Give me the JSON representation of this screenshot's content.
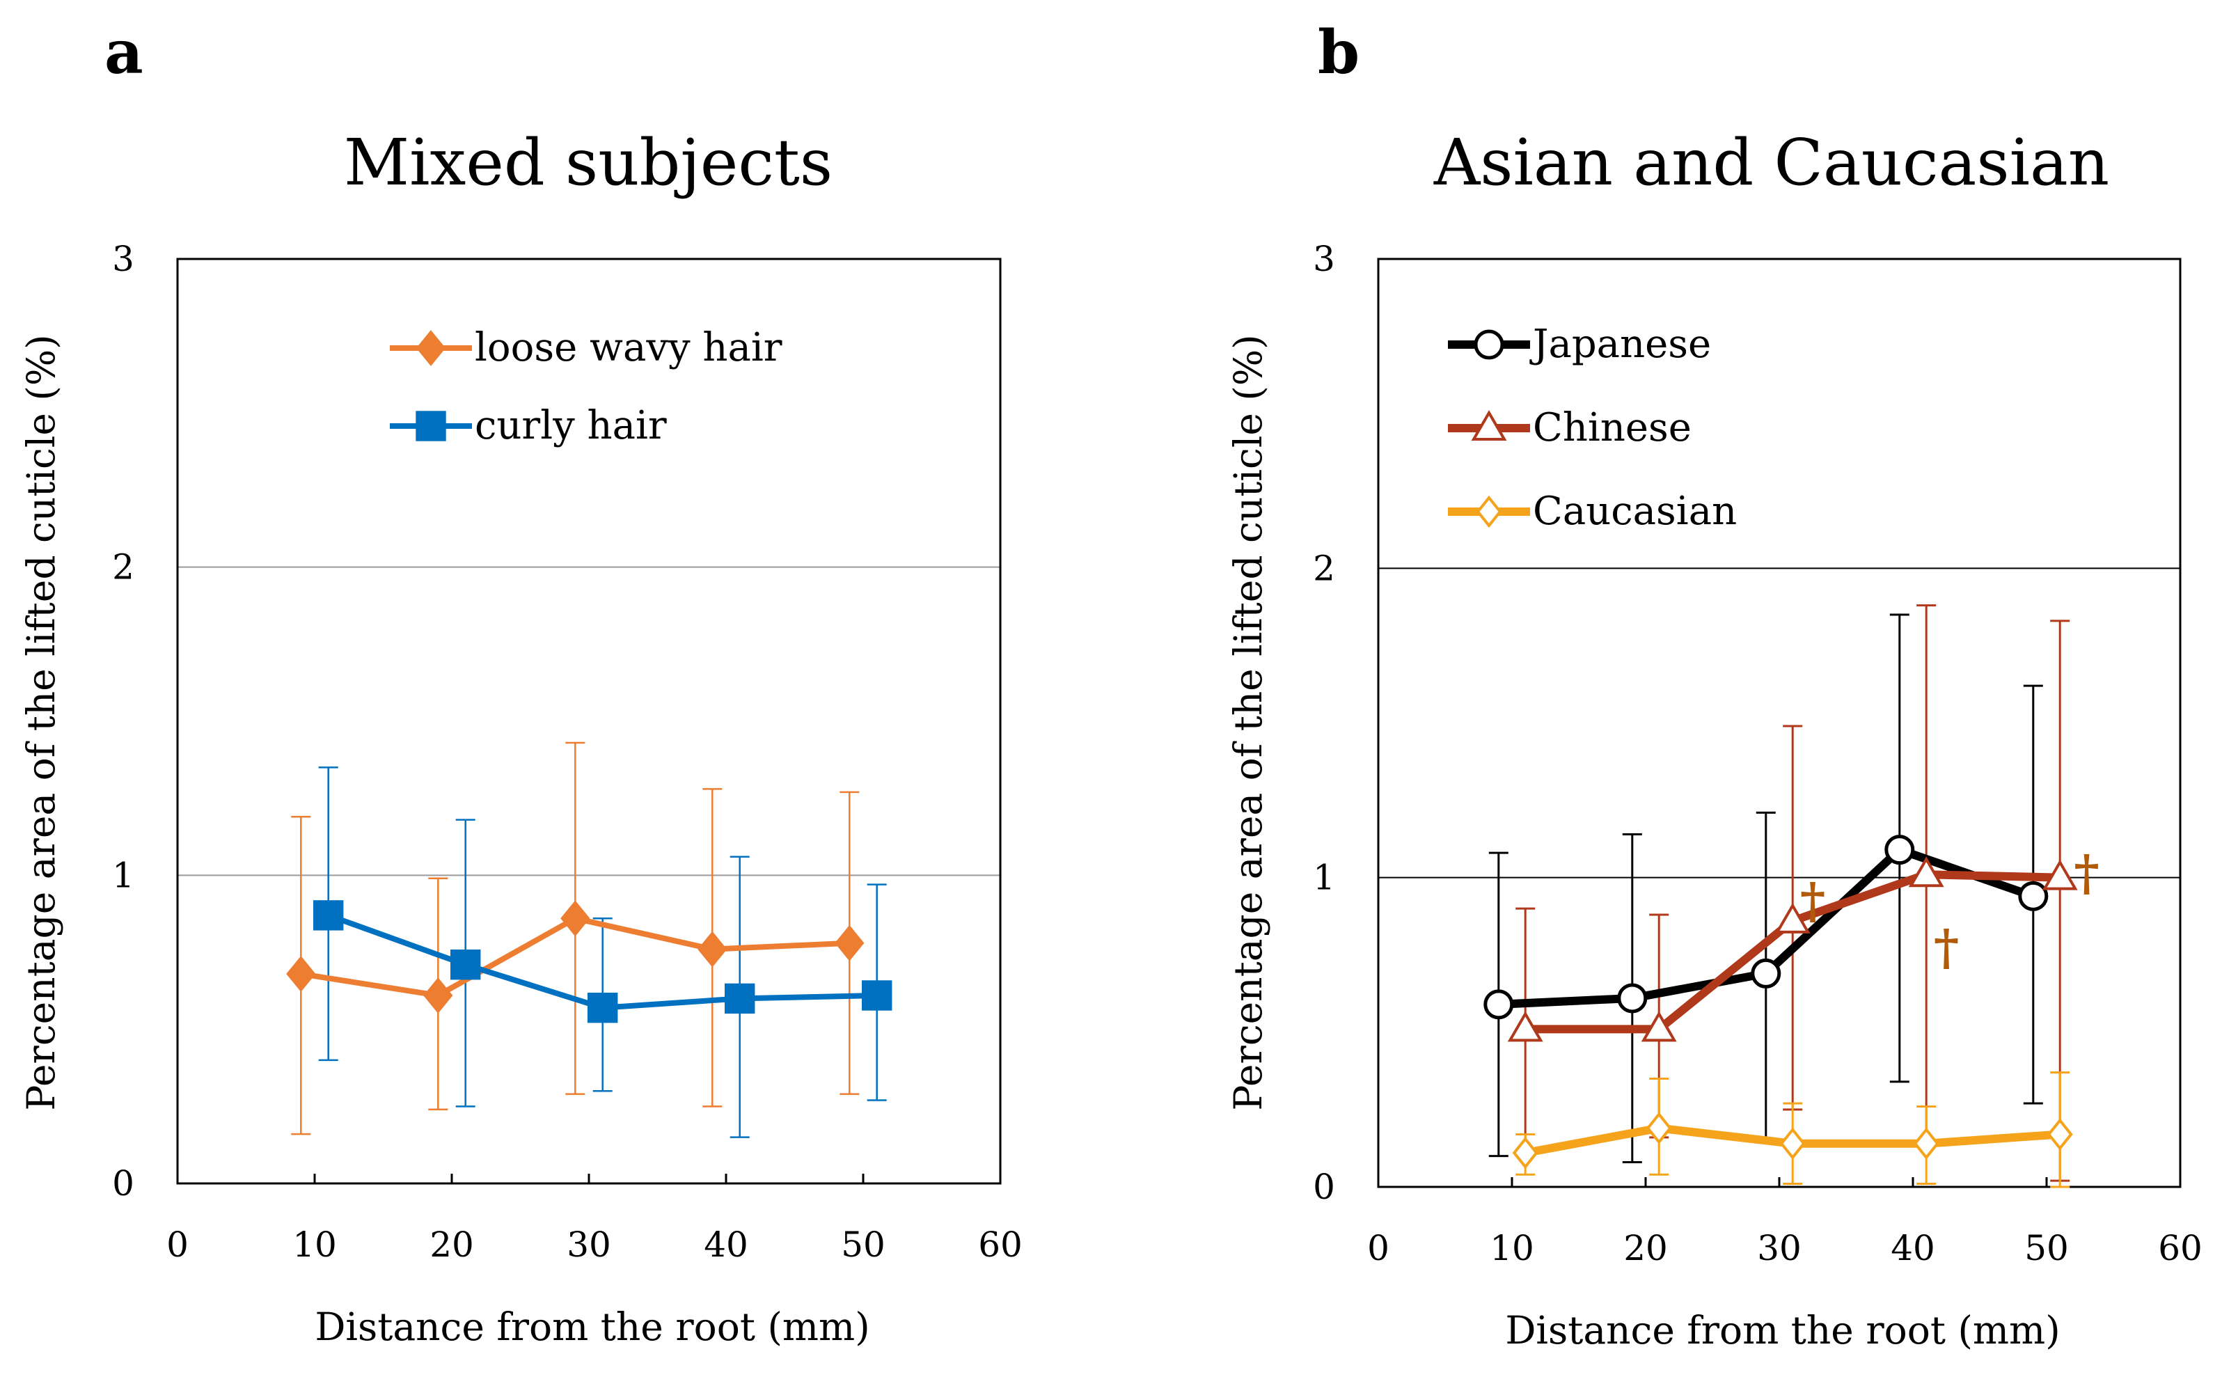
{
  "chart_data": [
    {
      "type": "line",
      "panel_label": "a",
      "title": "Mixed subjects",
      "xlabel": "Distance from the root (mm)",
      "ylabel": "Percentage area of the lifted cuticle (%)",
      "xlim": [
        0,
        60
      ],
      "ylim": [
        0,
        3
      ],
      "x_ticks": [
        "0",
        "10",
        "20",
        "30",
        "40",
        "50",
        "60"
      ],
      "y_ticks": [
        "0",
        "1",
        "2",
        "3"
      ],
      "gridlines_y": [
        1,
        2
      ],
      "legend_position": "top-left",
      "series": [
        {
          "name": "loose wavy hair",
          "color": "#ED7D31",
          "marker": "diamond",
          "x": [
            9,
            19,
            29,
            39,
            49
          ],
          "y": [
            0.68,
            0.61,
            0.86,
            0.76,
            0.78
          ],
          "err_low": [
            0.16,
            0.24,
            0.29,
            0.25,
            0.29
          ],
          "err_high": [
            1.19,
            0.99,
            1.43,
            1.28,
            1.27
          ]
        },
        {
          "name": "curly hair",
          "color": "#0070C0",
          "marker": "square",
          "x": [
            11,
            21,
            31,
            41,
            51
          ],
          "y": [
            0.87,
            0.71,
            0.57,
            0.6,
            0.61
          ],
          "err_low": [
            0.4,
            0.25,
            0.3,
            0.15,
            0.27
          ],
          "err_high": [
            1.35,
            1.18,
            0.86,
            1.06,
            0.97
          ]
        }
      ]
    },
    {
      "type": "line",
      "panel_label": "b",
      "title": "Asian and Caucasian",
      "xlabel": "Distance from the root (mm)",
      "ylabel": "Percentage area of  the lifted cuticle (%)",
      "xlim": [
        0,
        60
      ],
      "ylim": [
        0,
        3
      ],
      "x_ticks": [
        "0",
        "10",
        "20",
        "30",
        "40",
        "50",
        "60"
      ],
      "y_ticks": [
        "0",
        "1",
        "2",
        "3"
      ],
      "gridlines_y": [
        1,
        2
      ],
      "legend_position": "top-left",
      "annotations": [
        {
          "text": "†",
          "x": 32.5,
          "y": 0.92
        },
        {
          "text": "†",
          "x": 42.5,
          "y": 0.77
        },
        {
          "text": "†",
          "x": 53,
          "y": 1.01
        }
      ],
      "series": [
        {
          "name": "Japanese",
          "color": "#000000",
          "marker": "circle-open",
          "x": [
            9,
            19,
            29,
            39,
            49
          ],
          "y": [
            0.59,
            0.61,
            0.69,
            1.09,
            0.94
          ],
          "err_low": [
            0.1,
            0.08,
            0.15,
            0.34,
            0.27
          ],
          "err_high": [
            1.08,
            1.14,
            1.21,
            1.85,
            1.62
          ]
        },
        {
          "name": "Chinese",
          "color": "#B0381B",
          "marker": "triangle-open",
          "x": [
            11,
            21,
            31,
            41,
            51
          ],
          "y": [
            0.51,
            0.51,
            0.86,
            1.01,
            1.0
          ],
          "err_low": [
            0.12,
            0.16,
            0.25,
            0.14,
            0.02
          ],
          "err_high": [
            0.9,
            0.88,
            1.49,
            1.88,
            1.83
          ]
        },
        {
          "name": "Caucasian",
          "color": "#F5A31A",
          "marker": "diamond-open",
          "x": [
            11,
            21,
            31,
            41,
            51
          ],
          "y": [
            0.11,
            0.19,
            0.14,
            0.14,
            0.17
          ],
          "err_low": [
            0.04,
            0.04,
            0.01,
            0.01,
            0.0
          ],
          "err_high": [
            0.17,
            0.35,
            0.27,
            0.26,
            0.37
          ]
        }
      ]
    }
  ]
}
